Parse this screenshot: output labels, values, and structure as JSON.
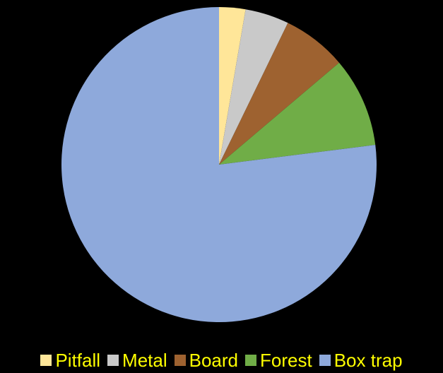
{
  "chart_data": {
    "type": "pie",
    "title": "",
    "start_angle_deg": 90,
    "direction": "clockwise",
    "legend_position": "bottom",
    "slices": [
      {
        "label": "Pitfall",
        "value": 2.7,
        "color": "#FFE699"
      },
      {
        "label": "Metal",
        "value": 4.5,
        "color": "#C9C9C9"
      },
      {
        "label": "Board",
        "value": 6.6,
        "color": "#9E6230"
      },
      {
        "label": "Forest",
        "value": 9.2,
        "color": "#70AD47"
      },
      {
        "label": "Box trap",
        "value": 77.0,
        "color": "#8EA9DB"
      }
    ]
  },
  "legend_text_color": "#FFFF00",
  "background_color": "#000000"
}
